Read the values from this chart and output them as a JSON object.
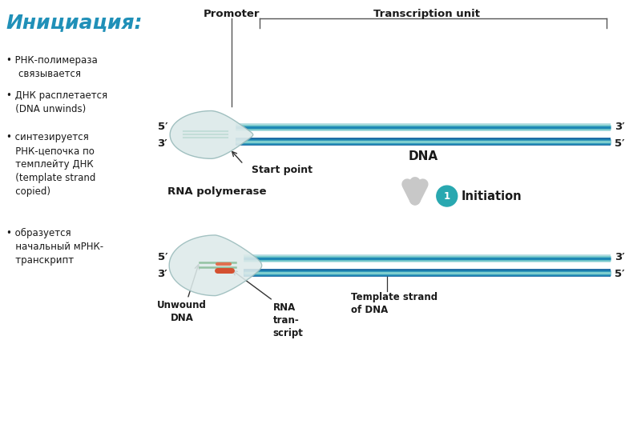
{
  "title": "Инициация:",
  "bullet1": "• РНК-полимераза\n    связывается",
  "bullet2": "• ДНК расплетается\n   (DNA unwinds)",
  "bullet3": "• синтезируется\n   РНК-цепочка по\n   темплейту ДНК\n   (template strand\n   copied)",
  "bullet4": "• образуется\n   начальный мРНК-\n   транскрипт",
  "dna_blue_dark": "#1565a0",
  "dna_blue_mid": "#1e88b4",
  "dna_blue_light": "#7ecece",
  "dna_blue_pale": "#b0dce0",
  "poly_fill": "#ddeaea",
  "poly_edge": "#99bbbb",
  "poly_inner": "#b8d8d0",
  "arrow_gray": "#c8c8c8",
  "circle_teal": "#29a8b0",
  "text_black": "#1a1a1a",
  "title_color": "#2090b8",
  "rna_orange": "#d45030",
  "rna_orange2": "#e07050",
  "green_strand": "#80b890"
}
